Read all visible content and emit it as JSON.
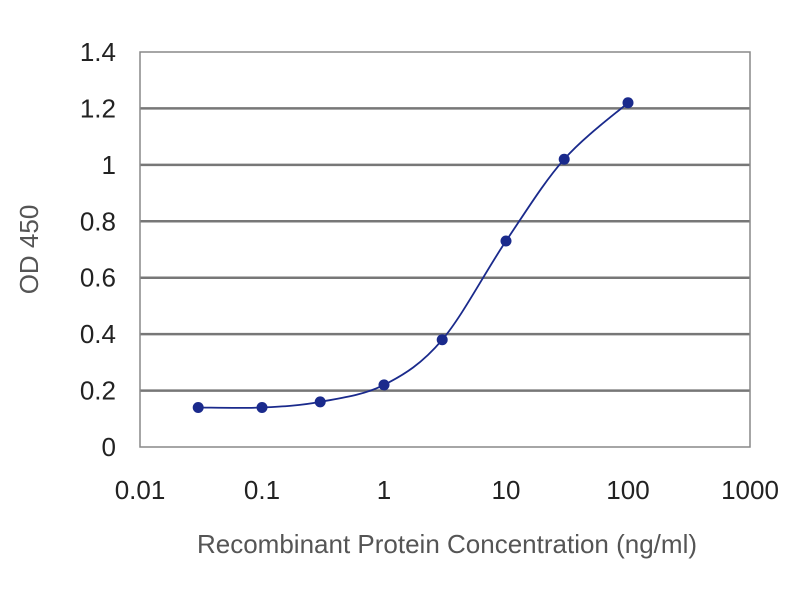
{
  "chart_data": {
    "type": "line",
    "x_scale": "log",
    "xlabel": "Recombinant Protein Concentration (ng/ml)",
    "ylabel": "OD 450",
    "xlim": [
      0.01,
      1000
    ],
    "ylim": [
      0,
      1.4
    ],
    "x_ticks": [
      "0.01",
      "0.1",
      "1",
      "10",
      "100",
      "1000"
    ],
    "y_ticks": [
      "0",
      "0.2",
      "0.4",
      "0.6",
      "0.8",
      "1",
      "1.2",
      "1.4"
    ],
    "grid": "horizontal",
    "legend": "none",
    "series": [
      {
        "x": [
          0.03,
          0.1,
          0.3,
          1,
          3,
          10,
          30,
          100
        ],
        "y": [
          0.14,
          0.14,
          0.16,
          0.22,
          0.38,
          0.73,
          1.02,
          1.22
        ],
        "color": "#1a2a8c"
      }
    ]
  }
}
